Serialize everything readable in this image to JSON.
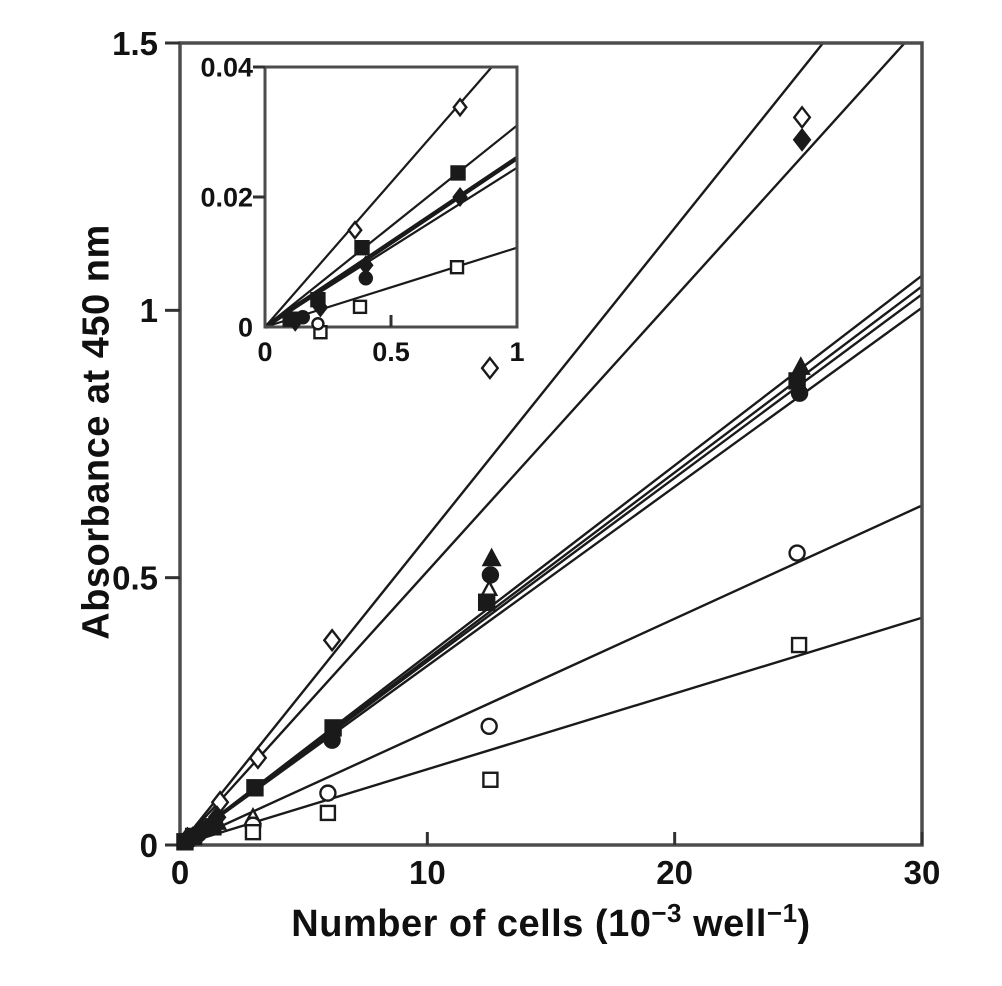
{
  "figure": {
    "ylabel": "Absorbance at 450 nm",
    "xlabel": {
      "prefix": "Number of cells (10",
      "sup1": "−3",
      "mid": " well",
      "sup2": "−1",
      "suffix": ")"
    },
    "colors": {
      "ink": "#1c1c1c",
      "frame": "#4d4d4d",
      "tick": "#333333",
      "text": "#121212",
      "background": "#ffffff"
    }
  },
  "chart_data": {
    "type": "scatter",
    "title": "",
    "xlabel": "Number of cells (10^-3 well^-1)",
    "ylabel": "Absorbance at 450 nm",
    "grid": false,
    "legend": "none",
    "main": {
      "xlim": [
        0,
        30
      ],
      "ylim": [
        0,
        1.5
      ],
      "xticks": [
        0,
        10,
        20,
        30
      ],
      "xticklabels": [
        "0",
        "10",
        "20",
        "30"
      ],
      "xtick_marks": [
        10,
        20,
        30
      ],
      "yticks": [
        0,
        0.5,
        1,
        1.5
      ],
      "yticklabels": [
        "0",
        "0.5",
        "1",
        "1.5"
      ],
      "ytick_marks": [
        0,
        0.5,
        1,
        1.5
      ],
      "series": [
        {
          "name": "open-diamond",
          "marker": "diamond",
          "fill": "open",
          "size": 10,
          "line": [
            [
              0,
              0
            ],
            [
              26.0,
              1.5
            ]
          ],
          "line_width": 2.4,
          "points": [
            [
              1.62,
              0.08
            ],
            [
              3.15,
              0.163
            ],
            [
              6.15,
              0.383
            ],
            [
              12.53,
              0.892
            ],
            [
              25.15,
              1.361
            ]
          ]
        },
        {
          "name": "filled-diamond",
          "marker": "diamond",
          "fill": "filled",
          "size": 10,
          "line": [
            [
              0,
              0
            ],
            [
              29.3,
              1.5
            ]
          ],
          "line_width": 2.4,
          "points": [
            [
              0.3,
              0.012
            ],
            [
              0.9,
              0.028
            ],
            [
              1.5,
              0.052
            ],
            [
              25.15,
              1.319
            ]
          ]
        },
        {
          "name": "filled-square",
          "marker": "square",
          "fill": "filled",
          "size": 15,
          "line": [
            [
              0,
              0
            ],
            [
              30,
              1.065
            ]
          ],
          "line_width": 2.4,
          "points": [
            [
              0.2,
              0.006
            ],
            [
              0.55,
              0.016
            ],
            [
              1.33,
              0.034
            ],
            [
              3.03,
              0.107
            ],
            [
              6.19,
              0.219
            ],
            [
              12.4,
              0.454
            ],
            [
              24.95,
              0.868
            ]
          ]
        },
        {
          "name": "filled-circle",
          "marker": "circle",
          "fill": "filled",
          "size": 15,
          "line": [
            [
              0,
              0
            ],
            [
              30,
              1.045
            ]
          ],
          "line_width": 2.4,
          "points": [
            [
              0.35,
              0.009
            ],
            [
              0.75,
              0.021
            ],
            [
              6.15,
              0.196
            ],
            [
              12.55,
              0.505
            ],
            [
              25.05,
              0.845
            ]
          ]
        },
        {
          "name": "filled-triangle",
          "marker": "triangle",
          "fill": "filled",
          "size": 16,
          "line": [
            [
              0,
              0
            ],
            [
              30,
              1.03
            ]
          ],
          "line_width": 2.4,
          "points": [
            [
              0.5,
              0.014
            ],
            [
              1.5,
              0.042
            ],
            [
              12.6,
              0.535
            ],
            [
              25.1,
              0.893
            ]
          ]
        },
        {
          "name": "open-triangle",
          "marker": "triangle",
          "fill": "open",
          "size": 14,
          "line": [
            [
              0,
              0
            ],
            [
              30,
              1.005
            ]
          ],
          "line_width": 2.4,
          "points": [
            [
              2.95,
              0.052
            ],
            [
              12.5,
              0.478
            ]
          ]
        },
        {
          "name": "open-circle",
          "marker": "circle",
          "fill": "open",
          "size": 15,
          "line": [
            [
              0,
              0
            ],
            [
              30,
              0.635
            ]
          ],
          "line_width": 2.4,
          "points": [
            [
              2.95,
              0.037
            ],
            [
              5.98,
              0.097
            ],
            [
              12.5,
              0.222
            ],
            [
              24.95,
              0.546
            ]
          ]
        },
        {
          "name": "open-square",
          "marker": "square",
          "fill": "open",
          "size": 14,
          "line": [
            [
              0,
              0
            ],
            [
              30,
              0.425
            ]
          ],
          "line_width": 2.4,
          "points": [
            [
              2.95,
              0.024
            ],
            [
              5.98,
              0.06
            ],
            [
              12.55,
              0.122
            ],
            [
              25.03,
              0.374
            ]
          ]
        }
      ]
    },
    "inset": {
      "xlim": [
        0,
        1
      ],
      "ylim": [
        0,
        0.04
      ],
      "xticks": [
        0,
        0.5,
        1
      ],
      "xticklabels": [
        "0",
        "0.5",
        "1"
      ],
      "xtick_marks": [
        0.5
      ],
      "yticks": [
        0,
        0.02,
        0.04
      ],
      "yticklabels": [
        "0",
        "0.02",
        "0.04"
      ],
      "ytick_marks": [
        0.02,
        0.04
      ],
      "series": [
        {
          "name": "open-diamond",
          "marker": "diamond",
          "fill": "open",
          "size": 8,
          "line": [
            [
              0,
              0
            ],
            [
              0.9,
              0.04
            ]
          ],
          "line_width": 2.2,
          "points": [
            [
              0.357,
              0.0149
            ],
            [
              0.774,
              0.0338
            ]
          ]
        },
        {
          "name": "filled-square",
          "marker": "square",
          "fill": "filled",
          "size": 13,
          "line": [
            [
              0,
              0
            ],
            [
              1,
              0.031
            ]
          ],
          "line_width": 2.2,
          "points": [
            [
              0.1,
              0.0012
            ],
            [
              0.21,
              0.0042
            ],
            [
              0.385,
              0.0122
            ],
            [
              0.766,
              0.0237
            ]
          ]
        },
        {
          "name": "filled-diamond",
          "marker": "diamond",
          "fill": "filled",
          "size": 8,
          "line": [
            [
              0,
              0
            ],
            [
              1,
              0.026
            ]
          ],
          "line_width": 4.5,
          "points": [
            [
              0.12,
              0.0008
            ],
            [
              0.22,
              0.003
            ],
            [
              0.4,
              0.0095
            ],
            [
              0.774,
              0.02
            ]
          ]
        },
        {
          "name": "filled-circle",
          "marker": "circle",
          "fill": "filled",
          "size": 12,
          "line": [
            [
              0,
              0
            ],
            [
              1,
              0.0245
            ]
          ],
          "line_width": 2.2,
          "points": [
            [
              0.15,
              0.0015
            ],
            [
              0.4,
              0.0075
            ]
          ]
        },
        {
          "name": "open-square",
          "marker": "square",
          "fill": "open",
          "size": 12,
          "line": [
            [
              0,
              0
            ],
            [
              1,
              0.0122
            ]
          ],
          "line_width": 2.2,
          "points": [
            [
              0.22,
              -0.0008
            ],
            [
              0.377,
              0.0031
            ],
            [
              0.762,
              0.0092
            ]
          ]
        },
        {
          "name": "open-circle",
          "marker": "circle",
          "fill": "open",
          "size": 11,
          "points": [
            [
              0.21,
              0.0005
            ]
          ]
        }
      ]
    }
  }
}
